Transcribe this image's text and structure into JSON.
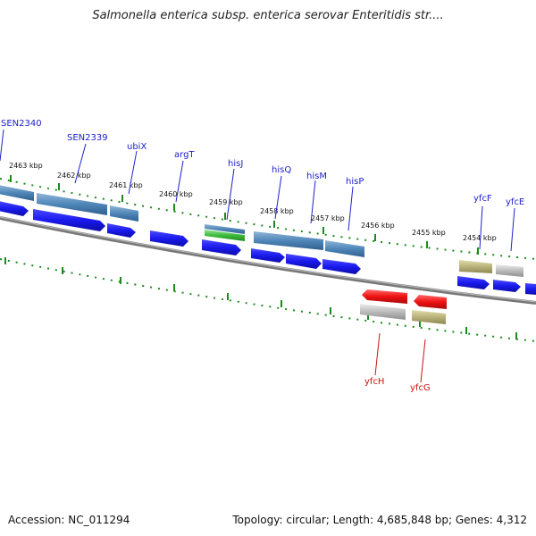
{
  "title": "Salmonella enterica subsp. enterica serovar Enteritidis str....",
  "footer": {
    "accession": "Accession: NC_011294",
    "summary": "Topology: circular; Length: 4,685,848 bp; Genes: 4,312"
  },
  "scale_labels": [
    "2463 kbp",
    "2462 kbp",
    "2461 kbp",
    "2460 kbp",
    "2459 kbp",
    "2458 kbp",
    "2457 kbp",
    "2456 kbp",
    "2455 kbp",
    "2454 kbp"
  ],
  "gene_labels_blue": [
    "SEN2340",
    "SEN2339",
    "ubiX",
    "argT",
    "hisJ",
    "hisQ",
    "hisM",
    "hisP",
    "yfcF",
    "yfcE"
  ],
  "gene_labels_red": [
    "yfcH",
    "yfcG"
  ],
  "colors": {
    "cds": "#1a1aee",
    "cds_reverse": "#ee1111",
    "gene_blue": "#4f86b8",
    "gene_olive": "#b9b27a",
    "gene_gray": "#bcbcbc",
    "gene_green": "#3cbb3c",
    "tick": "#1e8a1e",
    "label_blue": "#2020cc",
    "label_red": "#cc1111"
  }
}
